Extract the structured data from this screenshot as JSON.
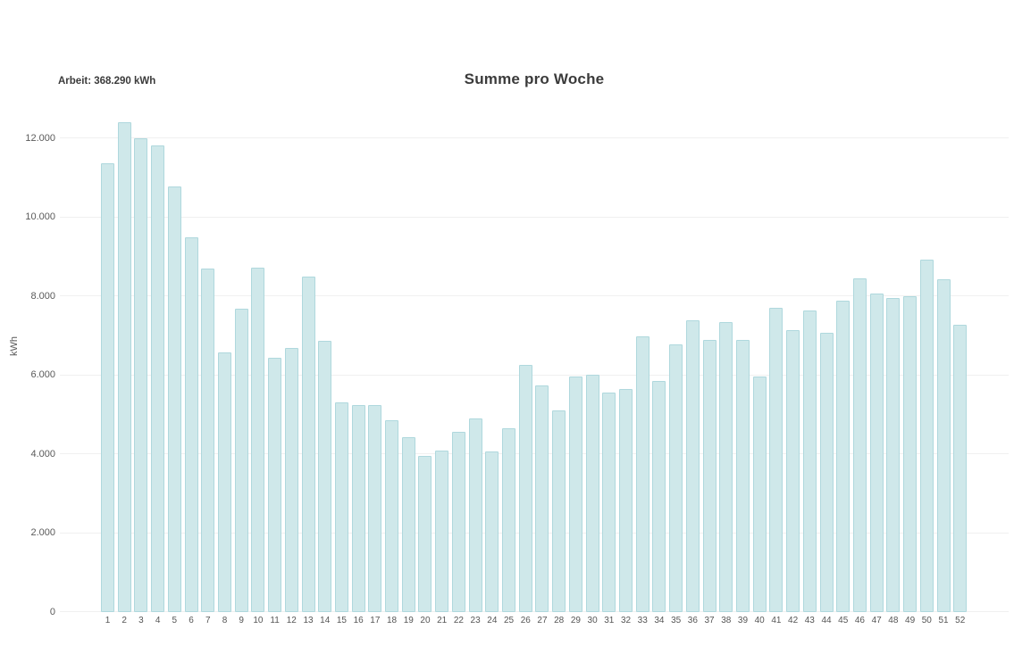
{
  "legend": {
    "label": "Arbeit: 368.290 kWh"
  },
  "chart_data": {
    "type": "bar",
    "title": "Summe pro Woche",
    "xlabel": "",
    "ylabel": "kWh",
    "categories": [
      "1",
      "2",
      "3",
      "4",
      "5",
      "6",
      "7",
      "8",
      "9",
      "10",
      "11",
      "12",
      "13",
      "14",
      "15",
      "16",
      "17",
      "18",
      "19",
      "20",
      "21",
      "22",
      "23",
      "24",
      "25",
      "26",
      "27",
      "28",
      "29",
      "30",
      "31",
      "32",
      "33",
      "34",
      "35",
      "36",
      "37",
      "38",
      "39",
      "40",
      "41",
      "42",
      "43",
      "44",
      "45",
      "46",
      "47",
      "48",
      "49",
      "50",
      "51",
      "52"
    ],
    "values": [
      11360,
      12410,
      11990,
      11810,
      10780,
      9490,
      8710,
      6570,
      7690,
      8730,
      6450,
      6700,
      8490,
      6860,
      5320,
      5250,
      5250,
      4850,
      4420,
      3950,
      4090,
      4560,
      4910,
      4060,
      4650,
      6250,
      5740,
      5100,
      5960,
      6010,
      5550,
      5640,
      6990,
      5850,
      6790,
      7390,
      6900,
      7350,
      6890,
      5970,
      7700,
      7150,
      7640,
      7070,
      7890,
      8460,
      8060,
      7960,
      8000,
      8930,
      8420,
      7280
    ],
    "ylim": [
      0,
      12540
    ],
    "yticks": [
      0,
      2000,
      4000,
      6000,
      8000,
      10000,
      12000
    ],
    "ytick_labels": [
      "0",
      "2.000",
      "4.000",
      "6.000",
      "8.000",
      "10.000",
      "12.000"
    ],
    "grid": true,
    "legend_position": "top-left",
    "annotation_total": "Arbeit: 368.290 kWh",
    "colors": {
      "bar_fill": "#cfe8ea",
      "bar_border": "#afd8dd",
      "grid": "#f0f0f0",
      "title_text": "#3b3b3b",
      "axis_text": "#5a5a5a",
      "background": "#ffffff"
    }
  }
}
